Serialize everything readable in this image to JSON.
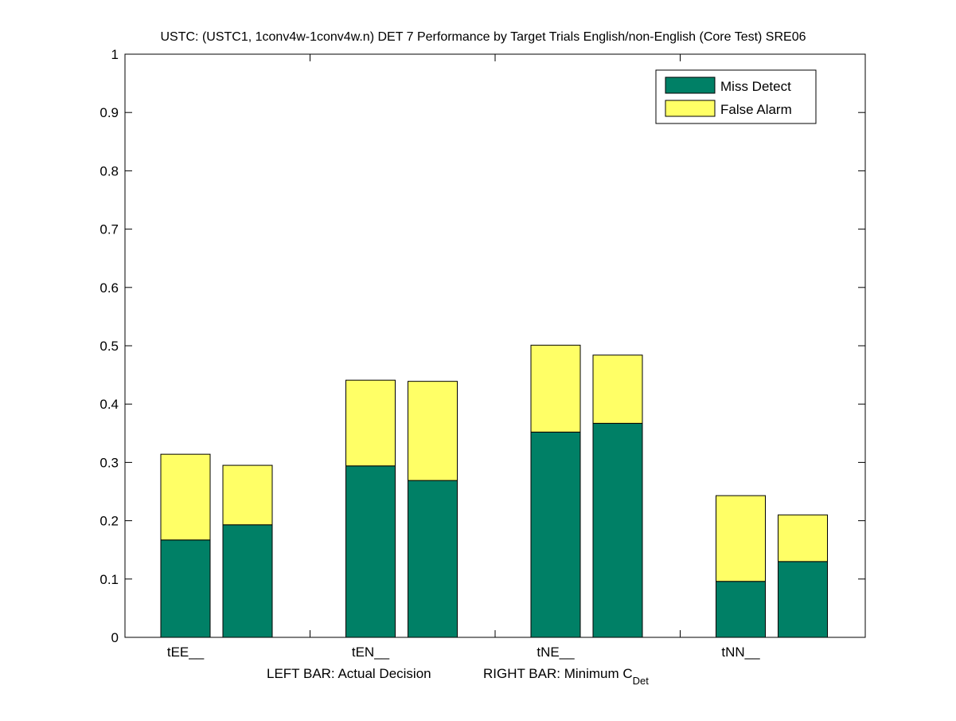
{
  "chart_data": {
    "type": "bar",
    "stacked": true,
    "title": "USTC: (USTC1, 1conv4w-1conv4w.n) DET 7 Performance by Target Trials English/non-English (Core Test) SRE06",
    "categories": [
      "tEE__",
      "tEN__",
      "tNE__",
      "tNN__"
    ],
    "bars_per_category": [
      "Actual Decision",
      "Minimum CDet"
    ],
    "xlabel_left": "LEFT BAR: Actual Decision",
    "xlabel_right_main": "RIGHT BAR: Minimum C",
    "xlabel_right_sub": "Det",
    "ylim": [
      0,
      1
    ],
    "yticks": [
      "0",
      "0.1",
      "0.2",
      "0.3",
      "0.4",
      "0.5",
      "0.6",
      "0.7",
      "0.8",
      "0.9",
      "1"
    ],
    "legend_position": "top-right",
    "series": [
      {
        "name": "Miss Detect",
        "color": "#008066",
        "values": [
          [
            0.167,
            0.193
          ],
          [
            0.294,
            0.269
          ],
          [
            0.352,
            0.367
          ],
          [
            0.096,
            0.13
          ]
        ]
      },
      {
        "name": "False Alarm",
        "color": "#ffff66",
        "values": [
          [
            0.147,
            0.102
          ],
          [
            0.147,
            0.17
          ],
          [
            0.149,
            0.117
          ],
          [
            0.147,
            0.08
          ]
        ]
      }
    ]
  }
}
